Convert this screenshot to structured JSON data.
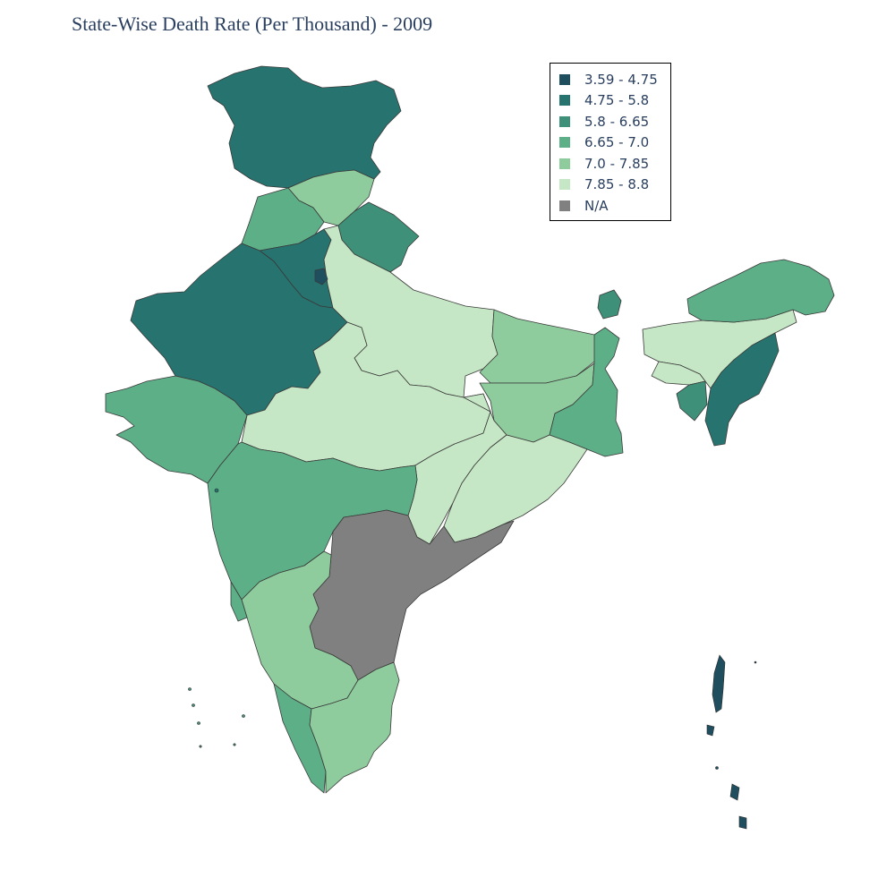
{
  "title": "State-Wise Death Rate (Per Thousand) - 2009",
  "legend": {
    "items": [
      {
        "label": "3.59 - 4.75",
        "color": "#1f4e5f"
      },
      {
        "label": "4.75 - 5.8",
        "color": "#26736f"
      },
      {
        "label": "5.8 - 6.65",
        "color": "#3f9079"
      },
      {
        "label": "6.65 - 7.0",
        "color": "#5daf87"
      },
      {
        "label": "7.0 - 7.85",
        "color": "#8fcc9d"
      },
      {
        "label": "7.85 - 8.8",
        "color": "#c6e7c5"
      },
      {
        "label": "N/A",
        "color": "#808080"
      }
    ]
  }
}
